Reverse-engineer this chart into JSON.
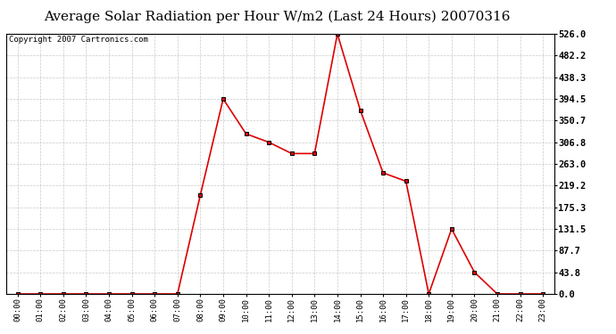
{
  "title": "Average Solar Radiation per Hour W/m2 (Last 24 Hours) 20070316",
  "copyright_text": "Copyright 2007 Cartronics.com",
  "hours": [
    "00:00",
    "01:00",
    "02:00",
    "03:00",
    "04:00",
    "05:00",
    "06:00",
    "07:00",
    "08:00",
    "09:00",
    "10:00",
    "11:00",
    "12:00",
    "13:00",
    "14:00",
    "15:00",
    "16:00",
    "17:00",
    "18:00",
    "19:00",
    "20:00",
    "21:00",
    "22:00",
    "23:00"
  ],
  "values": [
    0.0,
    0.0,
    0.0,
    0.0,
    0.0,
    0.0,
    0.0,
    0.0,
    200.0,
    394.5,
    324.0,
    306.8,
    284.0,
    284.0,
    526.0,
    372.0,
    245.0,
    228.0,
    0.0,
    131.5,
    43.8,
    0.0,
    0.0,
    0.0
  ],
  "ymin": 0.0,
  "ymax": 526.0,
  "yticks": [
    0.0,
    43.8,
    87.7,
    131.5,
    175.3,
    219.2,
    263.0,
    306.8,
    350.7,
    394.5,
    438.3,
    482.2,
    526.0
  ],
  "ytick_labels": [
    "0.0",
    "43.8",
    "87.7",
    "131.5",
    "175.3",
    "219.2",
    "263.0",
    "306.8",
    "350.7",
    "394.5",
    "438.3",
    "482.2",
    "526.0"
  ],
  "line_color": "#dd0000",
  "bg_color": "#ffffff",
  "grid_color": "#bbbbbb",
  "title_fontsize": 11,
  "copyright_fontsize": 6.5
}
